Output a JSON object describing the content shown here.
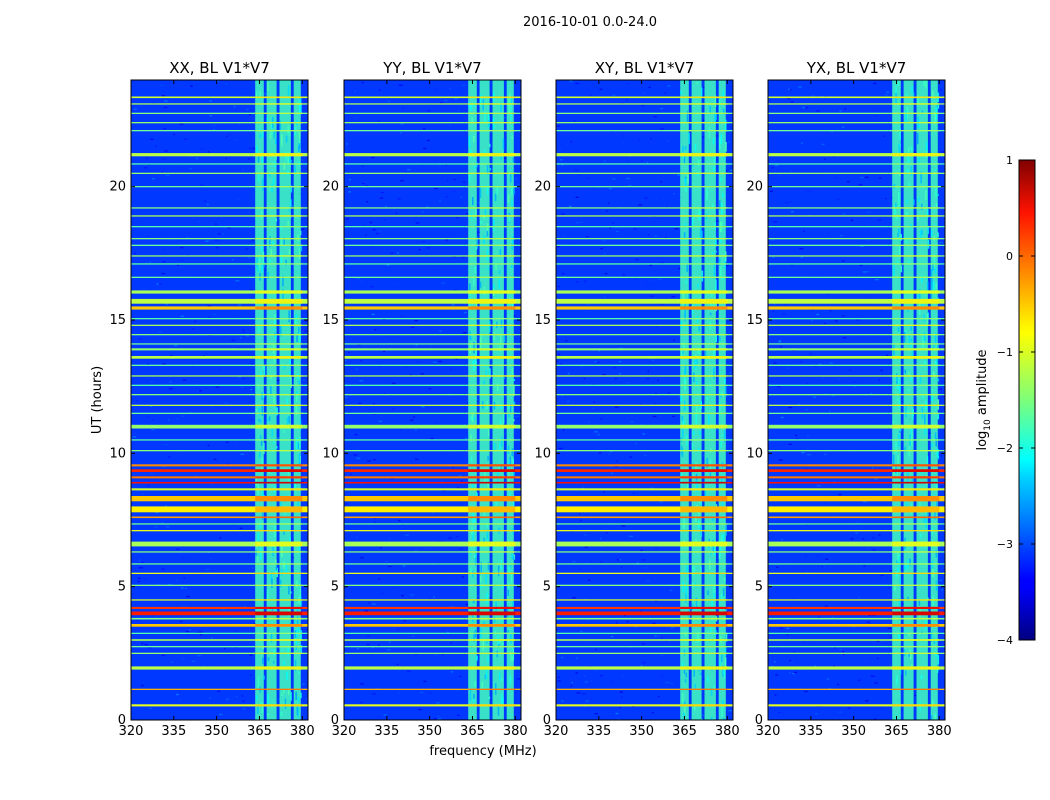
{
  "chart_data": {
    "type": "heatmap",
    "suptitle": "2016-10-01 0.0-24.0",
    "xlabel": "frequency (MHz)",
    "ylabel": "UT (hours)",
    "xlim": [
      320,
      382
    ],
    "ylim": [
      0,
      24
    ],
    "x_ticks": [
      320,
      335,
      350,
      365,
      380
    ],
    "y_ticks": [
      0,
      5,
      10,
      15,
      20
    ],
    "panels": [
      {
        "title": "XX, BL V1*V7"
      },
      {
        "title": "YY, BL V1*V7"
      },
      {
        "title": "XY, BL V1*V7"
      },
      {
        "title": "YX, BL V1*V7"
      }
    ],
    "colorbar": {
      "label": "log10 amplitude",
      "label_main": "log",
      "label_sub": "10",
      "label_rest": " amplitude",
      "vmin": -4,
      "vmax": 1,
      "ticks": [
        "1",
        "0",
        "−1",
        "−2",
        "−3",
        "−4"
      ],
      "tick_values": [
        1,
        0,
        -1,
        -2,
        -3,
        -4
      ],
      "colormap": "jet"
    },
    "background_level": -3.1,
    "rfi_band": {
      "freq_ranges_mhz": [
        [
          363.5,
          366.5
        ],
        [
          367.5,
          371.0
        ],
        [
          372.0,
          376.0
        ],
        [
          377.0,
          379.5
        ]
      ],
      "level": -1.8
    },
    "horizontal_bands": [
      {
        "ut": 0.55,
        "width": 0.08,
        "level": -1.0
      },
      {
        "ut": 1.15,
        "width": 0.05,
        "level": -0.5
      },
      {
        "ut": 1.95,
        "width": 0.12,
        "level": -1.2
      },
      {
        "ut": 2.5,
        "width": 0.05,
        "level": -1.4
      },
      {
        "ut": 2.75,
        "width": 0.05,
        "level": -1.6
      },
      {
        "ut": 3.0,
        "width": 0.06,
        "level": -1.3
      },
      {
        "ut": 3.25,
        "width": 0.05,
        "level": -1.7
      },
      {
        "ut": 3.55,
        "width": 0.1,
        "level": -0.6
      },
      {
        "ut": 3.8,
        "width": 0.06,
        "level": -1.5
      },
      {
        "ut": 4.0,
        "width": 0.14,
        "level": 0.25
      },
      {
        "ut": 4.2,
        "width": 0.08,
        "level": 0.1
      },
      {
        "ut": 4.5,
        "width": 0.05,
        "level": -1.1
      },
      {
        "ut": 5.05,
        "width": 0.05,
        "level": -1.5
      },
      {
        "ut": 5.5,
        "width": 0.05,
        "level": -1.0
      },
      {
        "ut": 5.85,
        "width": 0.05,
        "level": -1.6
      },
      {
        "ut": 6.3,
        "width": 0.05,
        "level": -1.5
      },
      {
        "ut": 6.6,
        "width": 0.18,
        "level": -1.3
      },
      {
        "ut": 7.1,
        "width": 0.05,
        "level": -1.0
      },
      {
        "ut": 7.35,
        "width": 0.05,
        "level": -1.6
      },
      {
        "ut": 7.6,
        "width": 0.06,
        "level": -0.4
      },
      {
        "ut": 7.9,
        "width": 0.22,
        "level": -0.8
      },
      {
        "ut": 8.3,
        "width": 0.2,
        "level": -0.6
      },
      {
        "ut": 8.65,
        "width": 0.08,
        "level": -1.1
      },
      {
        "ut": 8.9,
        "width": 0.06,
        "level": 0.3
      },
      {
        "ut": 9.1,
        "width": 0.08,
        "level": -0.2
      },
      {
        "ut": 9.35,
        "width": 0.1,
        "level": 0.2
      },
      {
        "ut": 9.55,
        "width": 0.08,
        "level": -0.3
      },
      {
        "ut": 10.1,
        "width": 0.05,
        "level": -1.5
      },
      {
        "ut": 10.5,
        "width": 0.05,
        "level": -1.7
      },
      {
        "ut": 11.0,
        "width": 0.14,
        "level": -1.4
      },
      {
        "ut": 11.5,
        "width": 0.05,
        "level": -1.6
      },
      {
        "ut": 11.8,
        "width": 0.05,
        "level": -1.2
      },
      {
        "ut": 12.2,
        "width": 0.05,
        "level": -1.5
      },
      {
        "ut": 12.55,
        "width": 0.05,
        "level": -1.7
      },
      {
        "ut": 12.9,
        "width": 0.05,
        "level": -1.3
      },
      {
        "ut": 13.3,
        "width": 0.05,
        "level": -1.6
      },
      {
        "ut": 13.6,
        "width": 0.1,
        "level": -1.2
      },
      {
        "ut": 13.9,
        "width": 0.08,
        "level": -1.4
      },
      {
        "ut": 14.1,
        "width": 0.05,
        "level": -1.6
      },
      {
        "ut": 14.45,
        "width": 0.05,
        "level": -1.5
      },
      {
        "ut": 14.8,
        "width": 0.05,
        "level": -1.3
      },
      {
        "ut": 15.05,
        "width": 0.05,
        "level": -1.7
      },
      {
        "ut": 15.45,
        "width": 0.12,
        "level": -0.6
      },
      {
        "ut": 15.7,
        "width": 0.18,
        "level": -1.2
      },
      {
        "ut": 16.05,
        "width": 0.12,
        "level": -1.3
      },
      {
        "ut": 16.6,
        "width": 0.05,
        "level": -1.6
      },
      {
        "ut": 17.1,
        "width": 0.05,
        "level": -1.7
      },
      {
        "ut": 17.4,
        "width": 0.05,
        "level": -1.4
      },
      {
        "ut": 17.8,
        "width": 0.05,
        "level": -1.6
      },
      {
        "ut": 18.05,
        "width": 0.05,
        "level": -1.5
      },
      {
        "ut": 18.5,
        "width": 0.05,
        "level": -1.7
      },
      {
        "ut": 18.9,
        "width": 0.05,
        "level": -1.3
      },
      {
        "ut": 19.2,
        "width": 0.05,
        "level": -1.5
      },
      {
        "ut": 20.0,
        "width": 0.05,
        "level": -1.6
      },
      {
        "ut": 20.5,
        "width": 0.05,
        "level": -1.4
      },
      {
        "ut": 20.85,
        "width": 0.05,
        "level": -1.7
      },
      {
        "ut": 21.2,
        "width": 0.12,
        "level": -1.2
      },
      {
        "ut": 22.1,
        "width": 0.05,
        "level": -1.6
      },
      {
        "ut": 22.4,
        "width": 0.05,
        "level": -1.4
      },
      {
        "ut": 22.75,
        "width": 0.05,
        "level": -1.5
      },
      {
        "ut": 23.1,
        "width": 0.05,
        "level": -1.3
      },
      {
        "ut": 23.35,
        "width": 0.06,
        "level": -1.1
      }
    ]
  }
}
